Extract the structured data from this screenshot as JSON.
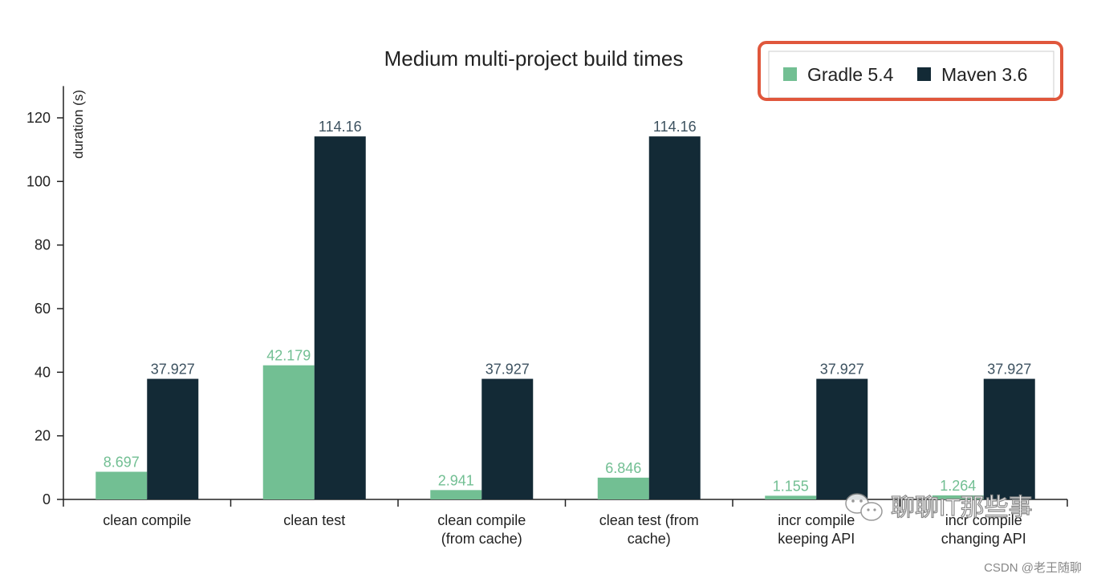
{
  "chart_data": {
    "type": "bar",
    "title": "Medium multi-project build times",
    "ylabel": "duration (s)",
    "xlabel": "",
    "ylim": [
      0,
      130
    ],
    "yticks": [
      0,
      20,
      40,
      60,
      80,
      100,
      120
    ],
    "grid": false,
    "legend_position": "top-right",
    "categories": [
      [
        "clean compile"
      ],
      [
        "clean test"
      ],
      [
        "clean compile",
        "(from cache)"
      ],
      [
        "clean test (from",
        "cache)"
      ],
      [
        "incr compile",
        "keeping API"
      ],
      [
        "incr compile",
        "changing API"
      ]
    ],
    "series": [
      {
        "name": "Gradle 5.4",
        "color": "#72bf93",
        "values": [
          8.697,
          42.179,
          2.941,
          6.846,
          1.155,
          1.264
        ],
        "labels": [
          "8.697",
          "42.179",
          "2.941",
          "6.846",
          "1.155",
          "1.264"
        ]
      },
      {
        "name": "Maven 3.6",
        "color": "#132a36",
        "values": [
          37.927,
          114.16,
          37.927,
          114.16,
          37.927,
          37.927
        ],
        "labels": [
          "37.927",
          "114.16",
          "37.927",
          "114.16",
          "37.927",
          "37.927"
        ]
      }
    ]
  },
  "annotation": {
    "highlight_color": "#e0573c",
    "target": "legend"
  },
  "watermark": {
    "text": "聊聊IT那些事",
    "icon": "wechat-icon"
  },
  "credit": "CSDN @老王随聊"
}
